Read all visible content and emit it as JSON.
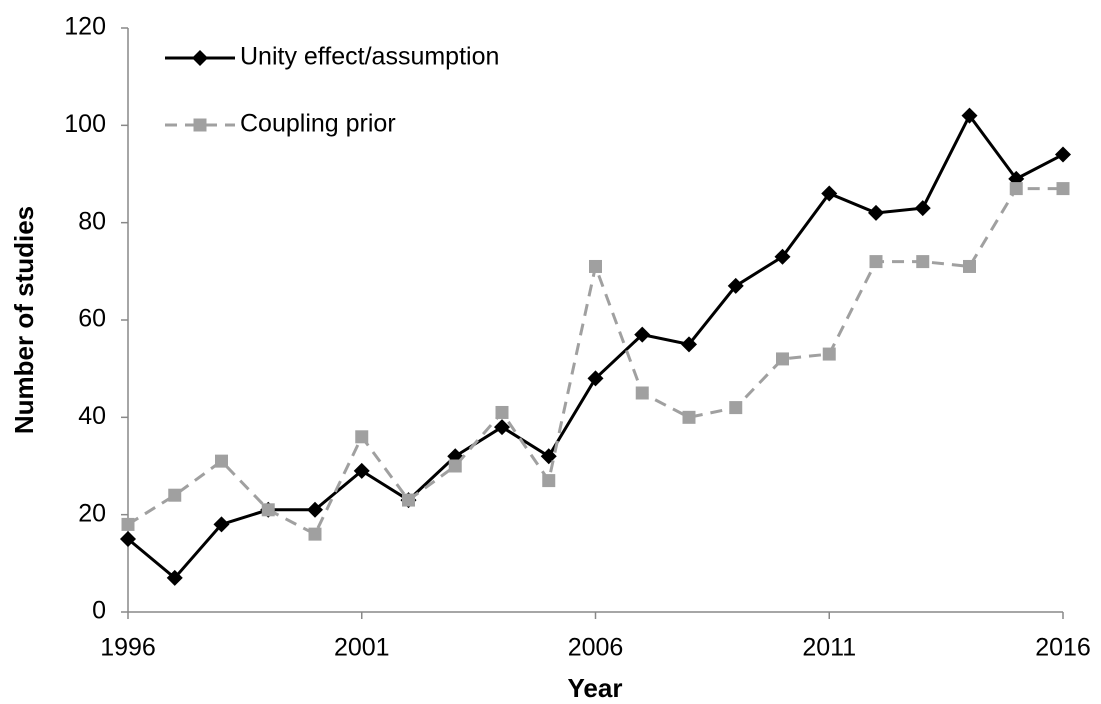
{
  "chart_data": {
    "type": "line",
    "x_label": "Year",
    "y_label": "Number of studies",
    "x": [
      1996,
      1997,
      1998,
      1999,
      2000,
      2001,
      2002,
      2003,
      2004,
      2005,
      2006,
      2007,
      2008,
      2009,
      2010,
      2011,
      2012,
      2013,
      2014,
      2015,
      2016
    ],
    "series": [
      {
        "name": "Unity effect/assumption",
        "color": "#000000",
        "line_style": "solid",
        "marker": "diamond",
        "values": [
          15,
          7,
          18,
          21,
          21,
          29,
          23,
          32,
          38,
          32,
          48,
          57,
          55,
          67,
          73,
          86,
          82,
          83,
          102,
          89,
          94
        ]
      },
      {
        "name": "Coupling prior",
        "color": "#a0a0a0",
        "line_style": "dashed",
        "marker": "square",
        "values": [
          18,
          24,
          31,
          21,
          16,
          36,
          23,
          30,
          41,
          27,
          71,
          45,
          40,
          42,
          52,
          53,
          72,
          72,
          71,
          87,
          87
        ]
      }
    ],
    "xlim": [
      1996,
      2016
    ],
    "xticks": [
      1996,
      2001,
      2006,
      2011,
      2016
    ],
    "ylim": [
      0,
      120
    ],
    "yticks": [
      0,
      20,
      40,
      60,
      80,
      100,
      120
    ],
    "grid": false,
    "legend_position": "top-left"
  }
}
